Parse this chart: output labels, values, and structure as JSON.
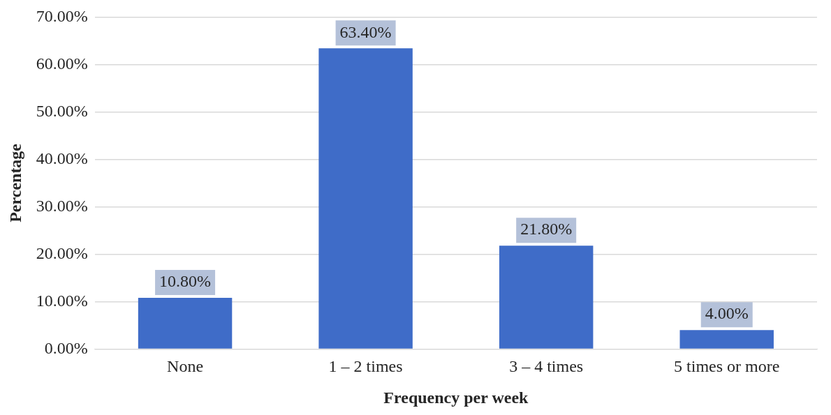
{
  "chart_data": {
    "type": "bar",
    "xlabel": "Frequency per week",
    "ylabel": "Percentage",
    "categories": [
      "None",
      "1 – 2 times",
      "3 – 4 times",
      "5 times or more"
    ],
    "values": [
      10.8,
      63.4,
      21.8,
      4.0
    ],
    "color": "#3f6cc8",
    "value_labels": [
      "10.80%",
      "63.40%",
      "21.80%",
      "4.00%"
    ],
    "ylim": [
      0,
      70
    ],
    "yticks": [
      {
        "value": 0,
        "label": "0.00%"
      },
      {
        "value": 10,
        "label": "10.00%"
      },
      {
        "value": 20,
        "label": "20.00%"
      },
      {
        "value": 30,
        "label": "30.00%"
      },
      {
        "value": 40,
        "label": "40.00%"
      },
      {
        "value": 50,
        "label": "50.00%"
      },
      {
        "value": 60,
        "label": "60.00%"
      },
      {
        "value": 70,
        "label": "70.00%"
      }
    ],
    "grid": "y",
    "legend": false
  }
}
